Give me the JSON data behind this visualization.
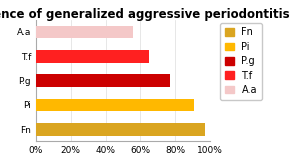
{
  "title": "Prevalence of generalized aggressive periodontitis",
  "categories": [
    "Fn",
    "Pi",
    "P.g",
    "T.f",
    "A.a"
  ],
  "values": [
    97,
    91,
    77,
    65,
    56
  ],
  "bar_colors": [
    "#DAA520",
    "#FFB800",
    "#CC0000",
    "#FF2020",
    "#F4C8C8"
  ],
  "legend_labels": [
    "Fn",
    "Pi",
    "P.g",
    "T.f",
    "A.a"
  ],
  "legend_colors": [
    "#DAA520",
    "#FFB800",
    "#CC0000",
    "#FF2020",
    "#F4C8C8"
  ],
  "xlim": [
    0,
    100
  ],
  "xticks": [
    0,
    20,
    40,
    60,
    80,
    100
  ],
  "xtick_labels": [
    "0%",
    "20%",
    "40%",
    "60%",
    "80%",
    "100%"
  ],
  "background_color": "#FFFFFF",
  "title_fontsize": 8.5,
  "tick_fontsize": 6.5,
  "legend_fontsize": 7,
  "bar_height": 0.52
}
